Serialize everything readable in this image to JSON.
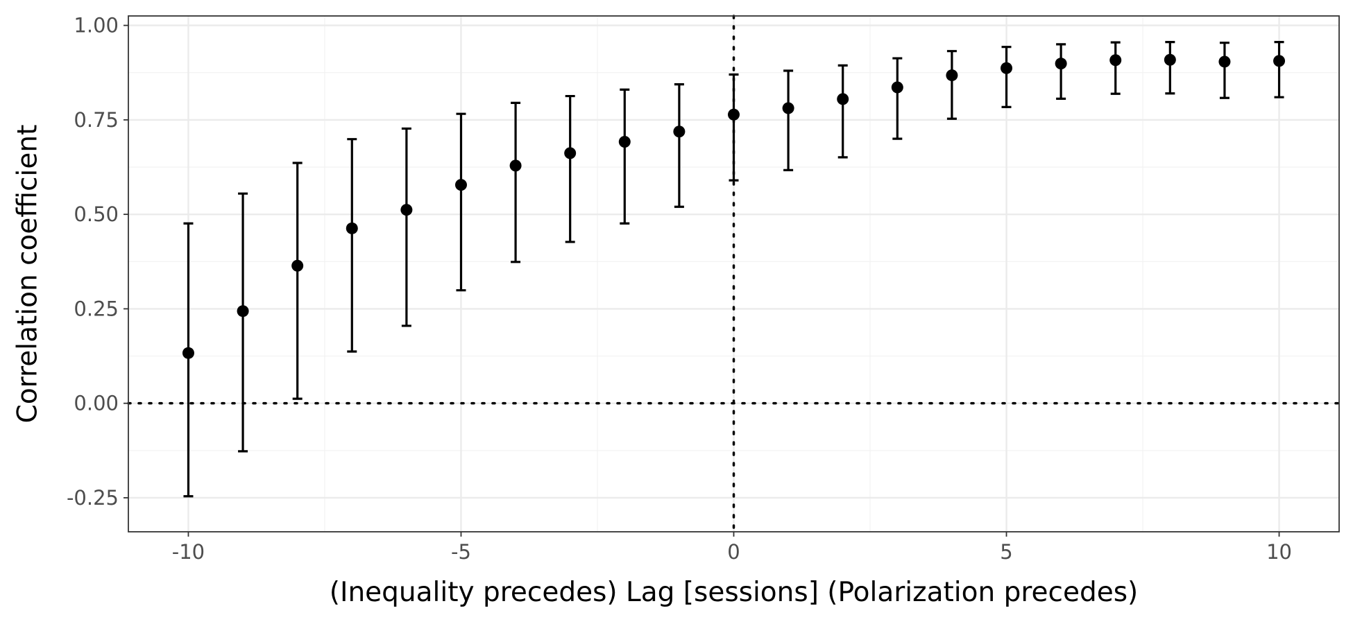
{
  "chart_data": {
    "type": "scatter",
    "title": "",
    "xlabel": "(Inequality precedes)  Lag [sessions]  (Polarization precedes)",
    "ylabel": "Correlation coefficient",
    "xlim": [
      -11.1,
      11.1
    ],
    "ylim": [
      -0.34,
      1.025
    ],
    "x_ticks": [
      -10,
      -5,
      0,
      5,
      10
    ],
    "x_tick_labels": [
      "-10",
      "-5",
      "0",
      "5",
      "10"
    ],
    "y_ticks": [
      -0.25,
      0,
      0.25,
      0.5,
      0.75,
      1
    ],
    "y_tick_labels": [
      "-0.25",
      "0.00",
      "0.25",
      "0.50",
      "0.75",
      "1.00"
    ],
    "reference_lines": {
      "x": 0,
      "y": 0,
      "style": "dotted"
    },
    "grid": true,
    "points": [
      {
        "x": -10,
        "y": 0.133,
        "lower": -0.246,
        "upper": 0.476
      },
      {
        "x": -9,
        "y": 0.244,
        "lower": -0.127,
        "upper": 0.555
      },
      {
        "x": -8,
        "y": 0.364,
        "lower": 0.012,
        "upper": 0.636
      },
      {
        "x": -7,
        "y": 0.463,
        "lower": 0.137,
        "upper": 0.699
      },
      {
        "x": -6,
        "y": 0.512,
        "lower": 0.205,
        "upper": 0.727
      },
      {
        "x": -5,
        "y": 0.578,
        "lower": 0.299,
        "upper": 0.766
      },
      {
        "x": -4,
        "y": 0.629,
        "lower": 0.374,
        "upper": 0.795
      },
      {
        "x": -3,
        "y": 0.662,
        "lower": 0.427,
        "upper": 0.813
      },
      {
        "x": -2,
        "y": 0.692,
        "lower": 0.476,
        "upper": 0.83
      },
      {
        "x": -1,
        "y": 0.719,
        "lower": 0.52,
        "upper": 0.844
      },
      {
        "x": 0,
        "y": 0.764,
        "lower": 0.59,
        "upper": 0.87
      },
      {
        "x": 1,
        "y": 0.781,
        "lower": 0.617,
        "upper": 0.88
      },
      {
        "x": 2,
        "y": 0.805,
        "lower": 0.651,
        "upper": 0.894
      },
      {
        "x": 3,
        "y": 0.836,
        "lower": 0.7,
        "upper": 0.913
      },
      {
        "x": 4,
        "y": 0.868,
        "lower": 0.753,
        "upper": 0.932
      },
      {
        "x": 5,
        "y": 0.887,
        "lower": 0.784,
        "upper": 0.943
      },
      {
        "x": 6,
        "y": 0.899,
        "lower": 0.806,
        "upper": 0.95
      },
      {
        "x": 7,
        "y": 0.908,
        "lower": 0.819,
        "upper": 0.955
      },
      {
        "x": 8,
        "y": 0.909,
        "lower": 0.82,
        "upper": 0.956
      },
      {
        "x": 9,
        "y": 0.904,
        "lower": 0.808,
        "upper": 0.954
      },
      {
        "x": 10,
        "y": 0.906,
        "lower": 0.81,
        "upper": 0.956
      }
    ]
  }
}
